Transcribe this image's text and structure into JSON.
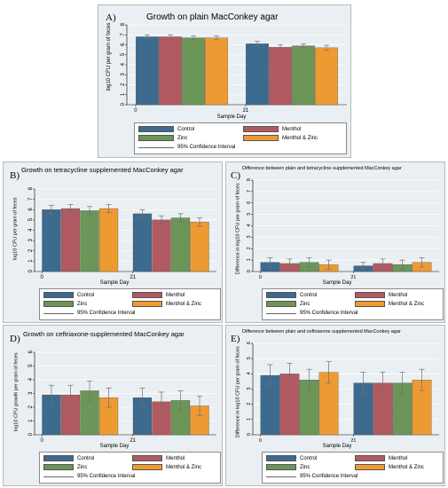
{
  "colors": {
    "Control": "#3d6a8f",
    "Menthol": "#b15a61",
    "Zinc": "#6c9658",
    "Menthol & Zinc": "#ee9a33",
    "ci": "#6f6f6f",
    "plot_bg": "#e9eff3",
    "grid": "#ffffff"
  },
  "panels": [
    {
      "letter": "A)",
      "title": "Growth on plain MacConkey agar",
      "ylabel": "log10 CFU per gram of feces",
      "xlabel": "Sample Day",
      "legend": [
        "Control",
        "Menthol",
        "Zinc",
        "Menthol & Zinc",
        "95% Confidence Interval"
      ]
    },
    {
      "letter": "B)",
      "title": "Growth on tetracycline supplemented MacConkey agar",
      "ylabel": "log10 CFU per gram of feces",
      "xlabel": "Sample Day",
      "legend": [
        "Control",
        "Menthol",
        "Zinc",
        "Menthol & Zinc",
        "95% Confidence Interval"
      ]
    },
    {
      "letter": "C)",
      "title": "Difference between plain and tetracycline supplemented MacConkey agar",
      "ylabel": "Difference in log10 CFU per gram of feces",
      "xlabel": "Sample Day",
      "legend": [
        "Control",
        "Menthol",
        "Zinc",
        "Menthol & Zinc",
        "95% Confidence Interval"
      ]
    },
    {
      "letter": "D)",
      "title": "Growth on ceftriaxone-supplemented MacConkey agar",
      "ylabel": "log10 CFU growth per gram of feces",
      "xlabel": "Sample Day",
      "legend": [
        "Control",
        "Menthol",
        "Zinc",
        "Menthol & Zinc",
        "95% Confidence Interval"
      ]
    },
    {
      "letter": "E)",
      "title": "Difference between plain and ceftriaxone supplemented MacConkey agar",
      "ylabel": "Difference in log10 CFU per gram of feces",
      "xlabel": "Sample Day",
      "legend": [
        "Control",
        "Menthol",
        "Zinc",
        "Menthol & Zinc",
        "95% Confidence Interval"
      ]
    }
  ],
  "chart_data": [
    {
      "type": "bar",
      "title": "Growth on plain MacConkey agar",
      "xlabel": "Sample Day",
      "ylabel": "log10 CFU per gram of feces",
      "categories": [
        "0",
        "21"
      ],
      "ylim": [
        0,
        8
      ],
      "yticks": [
        0,
        1,
        2,
        3,
        4,
        5,
        6,
        7,
        8
      ],
      "series": [
        {
          "name": "Control",
          "values": [
            6.8,
            6.1
          ],
          "ci": [
            [
              6.6,
              7.0
            ],
            [
              5.9,
              6.35
            ]
          ]
        },
        {
          "name": "Menthol",
          "values": [
            6.8,
            5.75
          ],
          "ci": [
            [
              6.6,
              7.0
            ],
            [
              5.5,
              6.0
            ]
          ]
        },
        {
          "name": "Zinc",
          "values": [
            6.7,
            5.9
          ],
          "ci": [
            [
              6.5,
              6.9
            ],
            [
              5.7,
              6.1
            ]
          ]
        },
        {
          "name": "Menthol & Zinc",
          "values": [
            6.7,
            5.7
          ],
          "ci": [
            [
              6.5,
              6.9
            ],
            [
              5.45,
              5.95
            ]
          ]
        }
      ],
      "legend": "bottom",
      "grid": true
    },
    {
      "type": "bar",
      "title": "Growth on tetracycline supplemented MacConkey agar",
      "xlabel": "Sample Day",
      "ylabel": "log10 CFU per gram of feces",
      "categories": [
        "0",
        "21"
      ],
      "ylim": [
        0,
        8
      ],
      "yticks": [
        0,
        1,
        2,
        3,
        4,
        5,
        6,
        7,
        8
      ],
      "series": [
        {
          "name": "Control",
          "values": [
            6.0,
            5.6
          ],
          "ci": [
            [
              5.6,
              6.4
            ],
            [
              5.2,
              6.0
            ]
          ]
        },
        {
          "name": "Menthol",
          "values": [
            6.1,
            5.0
          ],
          "ci": [
            [
              5.7,
              6.5
            ],
            [
              4.6,
              5.4
            ]
          ]
        },
        {
          "name": "Zinc",
          "values": [
            5.9,
            5.2
          ],
          "ci": [
            [
              5.5,
              6.3
            ],
            [
              4.8,
              5.6
            ]
          ]
        },
        {
          "name": "Menthol & Zinc",
          "values": [
            6.1,
            4.8
          ],
          "ci": [
            [
              5.7,
              6.5
            ],
            [
              4.4,
              5.2
            ]
          ]
        }
      ],
      "legend": "bottom",
      "grid": true
    },
    {
      "type": "bar",
      "title": "Difference between plain and tetracycline supplemented MacConkey agar",
      "xlabel": "Sample Day",
      "ylabel": "Difference in log10 CFU per gram of feces",
      "categories": [
        "0",
        "21"
      ],
      "ylim": [
        0,
        8
      ],
      "yticks": [
        0,
        1,
        2,
        3,
        4,
        5,
        6,
        7,
        8
      ],
      "series": [
        {
          "name": "Control",
          "values": [
            0.8,
            0.5
          ],
          "ci": [
            [
              0.4,
              1.2
            ],
            [
              0.2,
              0.8
            ]
          ]
        },
        {
          "name": "Menthol",
          "values": [
            0.7,
            0.7
          ],
          "ci": [
            [
              0.3,
              1.1
            ],
            [
              0.3,
              1.1
            ]
          ]
        },
        {
          "name": "Zinc",
          "values": [
            0.8,
            0.6
          ],
          "ci": [
            [
              0.4,
              1.2
            ],
            [
              0.2,
              1.0
            ]
          ]
        },
        {
          "name": "Menthol & Zinc",
          "values": [
            0.6,
            0.8
          ],
          "ci": [
            [
              0.2,
              1.0
            ],
            [
              0.4,
              1.2
            ]
          ]
        }
      ],
      "legend": "bottom",
      "grid": true
    },
    {
      "type": "bar",
      "title": "Growth on ceftriaxone-supplemented MacConkey agar",
      "xlabel": "Sample Day",
      "ylabel": "log10 CFU growth per gram of feces",
      "categories": [
        "0",
        "21"
      ],
      "ylim": [
        0,
        6
      ],
      "yticks": [
        0,
        1,
        2,
        3,
        4,
        5,
        6
      ],
      "series": [
        {
          "name": "Control",
          "values": [
            2.9,
            2.7
          ],
          "ci": [
            [
              2.2,
              3.6
            ],
            [
              2.0,
              3.4
            ]
          ]
        },
        {
          "name": "Menthol",
          "values": [
            2.9,
            2.4
          ],
          "ci": [
            [
              2.2,
              3.6
            ],
            [
              1.7,
              3.1
            ]
          ]
        },
        {
          "name": "Zinc",
          "values": [
            3.2,
            2.5
          ],
          "ci": [
            [
              2.5,
              3.9
            ],
            [
              1.8,
              3.2
            ]
          ]
        },
        {
          "name": "Menthol & Zinc",
          "values": [
            2.7,
            2.1
          ],
          "ci": [
            [
              2.0,
              3.4
            ],
            [
              1.4,
              2.8
            ]
          ]
        }
      ],
      "legend": "bottom",
      "grid": true
    },
    {
      "type": "bar",
      "title": "Difference between plain and ceftriaxone supplemented MacConkey agar",
      "xlabel": "Sample Day",
      "ylabel": "Difference in log10 CFU per gram of feces",
      "categories": [
        "0",
        "21"
      ],
      "ylim": [
        0,
        6
      ],
      "yticks": [
        0,
        1,
        2,
        3,
        4,
        5,
        6
      ],
      "series": [
        {
          "name": "Control",
          "values": [
            3.9,
            3.4
          ],
          "ci": [
            [
              3.2,
              4.6
            ],
            [
              2.7,
              4.1
            ]
          ]
        },
        {
          "name": "Menthol",
          "values": [
            4.0,
            3.4
          ],
          "ci": [
            [
              3.3,
              4.7
            ],
            [
              2.7,
              4.1
            ]
          ]
        },
        {
          "name": "Zinc",
          "values": [
            3.6,
            3.4
          ],
          "ci": [
            [
              2.9,
              4.3
            ],
            [
              2.7,
              4.1
            ]
          ]
        },
        {
          "name": "Menthol & Zinc",
          "values": [
            4.1,
            3.6
          ],
          "ci": [
            [
              3.4,
              4.8
            ],
            [
              2.9,
              4.3
            ]
          ]
        }
      ],
      "legend": "bottom",
      "grid": true
    }
  ]
}
